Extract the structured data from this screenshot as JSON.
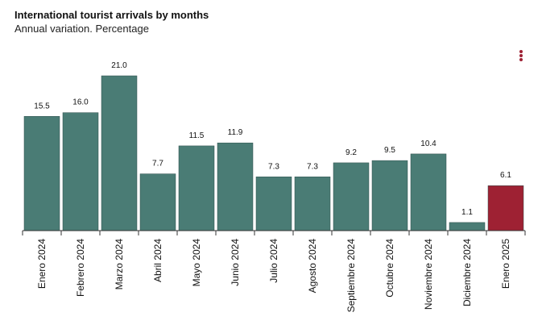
{
  "header": {
    "title": "International tourist arrivals by months",
    "subtitle": "Annual variation. Percentage"
  },
  "menu": {
    "icon": "kebab-menu-icon"
  },
  "colors": {
    "bar": "#4a7c75",
    "highlight": "#9e2133",
    "axis": "#333333",
    "label": "#111111"
  },
  "chart_data": {
    "type": "bar",
    "categories": [
      "Enero 2024",
      "Febrero 2024",
      "Marzo 2024",
      "Abril 2024",
      "Mayo 2024",
      "Junio 2024",
      "Julio 2024",
      "Agosto 2024",
      "Septiembre 2024",
      "Octubre 2024",
      "Noviembre 2024",
      "Diciembre 2024",
      "Enero 2025"
    ],
    "values": [
      15.5,
      16.0,
      21.0,
      7.7,
      11.5,
      11.9,
      7.3,
      7.3,
      9.2,
      9.5,
      10.4,
      1.1,
      6.1
    ],
    "data_labels": [
      "15.5",
      "16.0",
      "21.0",
      "7.7",
      "11.5",
      "11.9",
      "7.3",
      "7.3",
      "9.2",
      "9.5",
      "10.4",
      "1.1",
      "6.1"
    ],
    "highlight_index": 12,
    "title": "International tourist arrivals by months",
    "subtitle": "Annual variation. Percentage",
    "xlabel": "",
    "ylabel": "",
    "ylim": [
      0,
      21.0
    ],
    "grid": false,
    "legend": "none"
  }
}
